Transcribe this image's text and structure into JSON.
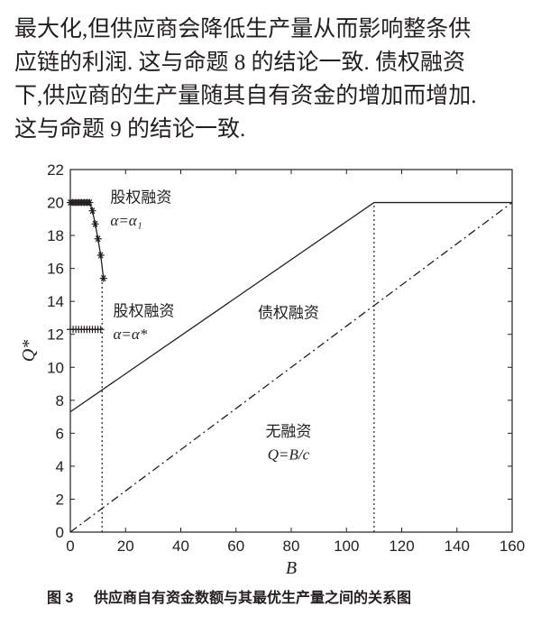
{
  "paragraph": {
    "lines": [
      "最大化,但供应商会降低生产量从而影响整条供",
      "应链的利润. 这与命题 8 的结论一致. 债权融资",
      "下,供应商的生产量随其自有资金的增加而增加.",
      "这与命题 9 的结论一致."
    ]
  },
  "chart_data": {
    "type": "line",
    "xlabel": "B",
    "ylabel": "Q*",
    "xlim": [
      0,
      160
    ],
    "ylim": [
      0,
      22
    ],
    "xticks": [
      0,
      20,
      40,
      60,
      80,
      100,
      120,
      140,
      160
    ],
    "yticks": [
      0,
      2,
      4,
      6,
      8,
      10,
      12,
      14,
      16,
      18,
      20,
      22
    ],
    "series": [
      {
        "name": "债权融资",
        "color": "#231f20",
        "dash": "solid",
        "x": [
          0,
          110,
          160
        ],
        "values": [
          7.3,
          20,
          20
        ]
      },
      {
        "name": "无融资",
        "formula": "Q=B/c",
        "color": "#231f20",
        "dash": "dashdot",
        "x": [
          0,
          160
        ],
        "values": [
          0,
          20
        ]
      },
      {
        "name": "股权融资",
        "formula": "α=α₁",
        "color": "#231f20",
        "dash": "solid",
        "marker": "star",
        "x": [
          0,
          1,
          2,
          3,
          4,
          5,
          6,
          7,
          8,
          9,
          10,
          11,
          12
        ],
        "values": [
          20,
          20,
          20,
          20,
          20,
          20,
          20,
          20,
          19.5,
          18.7,
          17.8,
          16.8,
          15.4
        ]
      },
      {
        "name": "股权融资",
        "formula": "α=α*",
        "color": "#231f20",
        "dash": "solid",
        "marker": "plus",
        "x": [
          0,
          1,
          2,
          3,
          4,
          5,
          6,
          7,
          8,
          9,
          10,
          11
        ],
        "values": [
          12.3,
          12.3,
          12.3,
          12.3,
          12.3,
          12.3,
          12.3,
          12.3,
          12.3,
          12.3,
          12.3,
          12.3
        ]
      }
    ],
    "vlines": [
      {
        "x": 11.5,
        "ymax": 15.4
      },
      {
        "x": 110,
        "ymax": 20
      }
    ]
  },
  "caption": {
    "label": "图 3",
    "text": "供应商自有资金数额与其最优生产量之间的关系图"
  }
}
